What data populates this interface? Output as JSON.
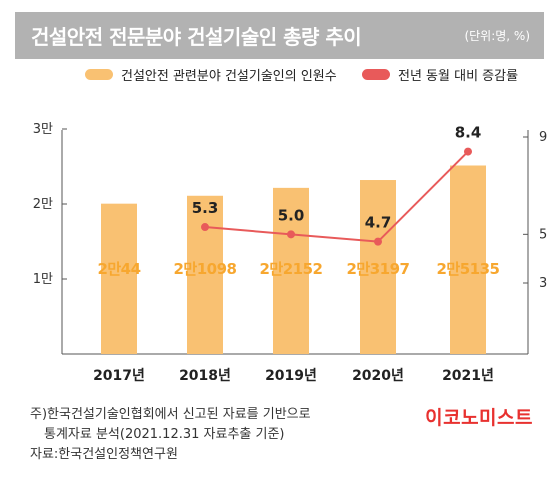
{
  "header": {
    "title": "건설안전 전문분야 건설기술인 총량 추이",
    "unit": "(단위:명, %)"
  },
  "legend": {
    "bar_label": "건설안전 관련분야 건설기술인의 인원수",
    "line_label": "전년 동월 대비 증감률"
  },
  "colors": {
    "bar": "#f9c172",
    "bar_label": "#f7a72f",
    "line": "#e85a5a",
    "header_bg": "#b2b2b2",
    "brand": "#e8312f"
  },
  "chart_data": {
    "type": "bar",
    "categories": [
      "2017년",
      "2018년",
      "2019년",
      "2020년",
      "2021년"
    ],
    "series": [
      {
        "type": "bar",
        "values": [
          20044,
          21098,
          22152,
          23197,
          25135
        ],
        "labels": [
          "2만44",
          "2만1098",
          "2만2152",
          "2만3197",
          "2만5135"
        ],
        "axis": "left"
      },
      {
        "type": "line",
        "values": [
          null,
          5.3,
          5.0,
          4.7,
          8.4
        ],
        "labels": [
          "",
          "5.3",
          "5.0",
          "4.7",
          "8.4"
        ],
        "axis": "right"
      }
    ],
    "left_axis": {
      "ticks": [
        10000,
        20000,
        30000
      ],
      "tick_labels": [
        "1만",
        "2만",
        "3만"
      ]
    },
    "right_axis": {
      "ticks": [
        3,
        5,
        9
      ],
      "tick_labels": [
        "3",
        "5",
        "9"
      ]
    },
    "grid": false,
    "legend_position": "top"
  },
  "notes": {
    "line1": "주)한국건설기술인협회에서 신고된 자료를 기반으로",
    "line2": "통계자료 분석(2021.12.31 자료추출 기준)",
    "source": "자료:한국건설인정책연구원"
  },
  "brand": "이코노미스트"
}
